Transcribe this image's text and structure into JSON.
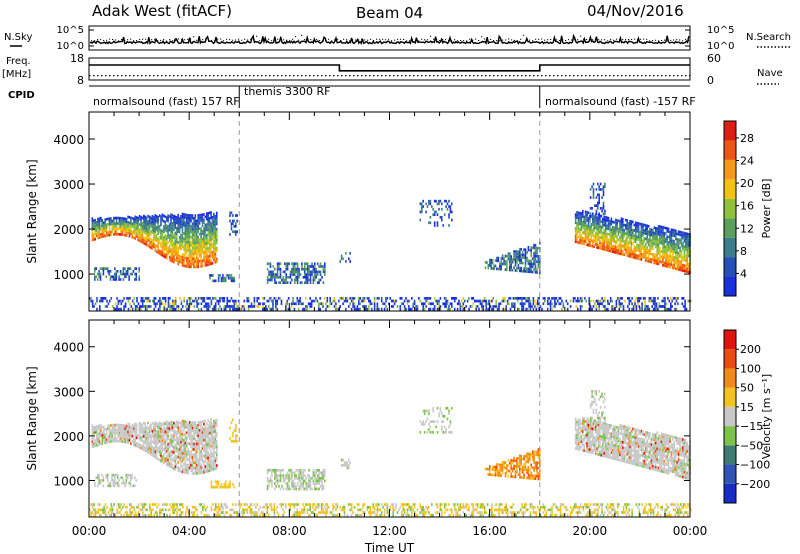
{
  "header": {
    "station": "Adak West (fitACF)",
    "beam": "Beam 04",
    "date": "04/Nov/2016"
  },
  "left_labels": {
    "nsky": "N.Sky",
    "freq_line1": "Freq.",
    "freq_line2": "[MHz]",
    "cpid": "CPID"
  },
  "right_labels": {
    "nsearch": "N.Search",
    "nave": "Nave"
  },
  "cpid_segments": [
    {
      "label": "normalsound (fast) 157 RF",
      "start_hour": 0
    },
    {
      "label": "themis 3300 RF",
      "start_hour": 6
    },
    {
      "label": "normalsound (fast) -157 RF",
      "start_hour": 18
    }
  ],
  "chart_data": [
    {
      "type": "line",
      "panel": "noise",
      "y_tick_labels": [
        "10^5",
        "10^0"
      ],
      "y_tick_labels_right": [
        "10^5",
        "10^0"
      ],
      "series": [
        {
          "name": "N.Sky",
          "style": "solid"
        },
        {
          "name": "N.Search",
          "style": "dotted"
        }
      ],
      "xlim_hours": [
        0,
        24
      ]
    },
    {
      "type": "line",
      "panel": "frequency",
      "ylabel": "Freq. [MHz]",
      "yticks": [
        8,
        18
      ],
      "ylim": [
        8,
        18
      ],
      "y2label": "Nave",
      "y2ticks": [
        0,
        60
      ],
      "y2lim": [
        0,
        60
      ],
      "series": [
        {
          "name": "Freq.",
          "style": "solid",
          "x": [
            0,
            10,
            10,
            18,
            18,
            24
          ],
          "y": [
            14.8,
            14.8,
            12.2,
            12.2,
            14.8,
            14.8
          ]
        },
        {
          "name": "Nave",
          "style": "dotted",
          "x": [
            0,
            24
          ],
          "y": [
            12,
            12
          ]
        }
      ]
    },
    {
      "type": "heatmap",
      "panel": "power",
      "ylabel": "Slant Range [km]",
      "yticks": [
        1000,
        2000,
        3000,
        4000
      ],
      "ylim": [
        180,
        4600
      ],
      "colorbar_label": "Power [dB]",
      "colorbar_ticks": [
        4,
        8,
        12,
        16,
        20,
        24,
        28
      ],
      "colorbar_range": [
        0,
        31
      ],
      "colorbar_colors": [
        "#1a2fe0",
        "#2450b8",
        "#3c7d8c",
        "#5aa05c",
        "#8fc23a",
        "#f2c20c",
        "#f49a16",
        "#ee5512",
        "#e01b10"
      ]
    },
    {
      "type": "heatmap",
      "panel": "velocity",
      "ylabel": "Slant Range [km]",
      "yticks": [
        1000,
        2000,
        3000,
        4000
      ],
      "ylim": [
        180,
        4600
      ],
      "colorbar_label": "Velocity [m s^-1]",
      "colorbar_ticks": [
        "200",
        "100",
        "50",
        "15",
        "-15",
        "-50",
        "-100",
        "-200"
      ],
      "colorbar_colors": [
        "#1a2cc8",
        "#2e55b6",
        "#3d7c72",
        "#7dc24a",
        "#c8c8c8",
        "#f4c41e",
        "#f48a16",
        "#ee4a10",
        "#e2100e"
      ],
      "xlabel": "Time UT",
      "xticks": [
        "00:00",
        "04:00",
        "08:00",
        "12:00",
        "16:00",
        "20:00",
        "00:00"
      ],
      "xlim_hours": [
        0,
        24
      ]
    }
  ]
}
